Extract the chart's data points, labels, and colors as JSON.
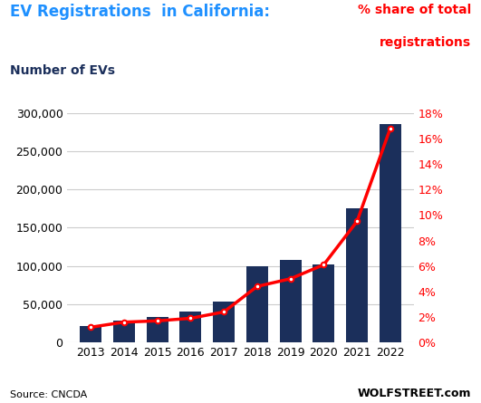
{
  "title": "EV Registrations  in California:",
  "left_label": "Number of EVs",
  "right_label_line1": "% share of total",
  "right_label_line2": "registrations",
  "source_left": "Source: CNCDA",
  "source_right": "WOLFSTREET.com",
  "years": [
    2013,
    2014,
    2015,
    2016,
    2017,
    2018,
    2019,
    2020,
    2021,
    2022
  ],
  "ev_counts": [
    22000,
    29000,
    34000,
    40000,
    53000,
    100000,
    108000,
    102000,
    175000,
    285000
  ],
  "pct_share": [
    1.2,
    1.6,
    1.7,
    1.9,
    2.4,
    4.4,
    5.0,
    6.1,
    9.5,
    16.8
  ],
  "bar_color": "#1b2f5b",
  "line_color": "#ff0000",
  "title_color": "#1e90ff",
  "right_label_color": "#ff0000",
  "left_label_color": "#1b2f5b",
  "source_color": "#000000",
  "wolfstreet_color": "#000000",
  "ylim_left": [
    0,
    300000
  ],
  "ylim_right": [
    0,
    18
  ],
  "yticks_left": [
    0,
    50000,
    100000,
    150000,
    200000,
    250000,
    300000
  ],
  "yticks_right": [
    0,
    2,
    4,
    6,
    8,
    10,
    12,
    14,
    16,
    18
  ],
  "background_color": "#ffffff",
  "grid_color": "#cccccc",
  "bar_width": 0.65
}
